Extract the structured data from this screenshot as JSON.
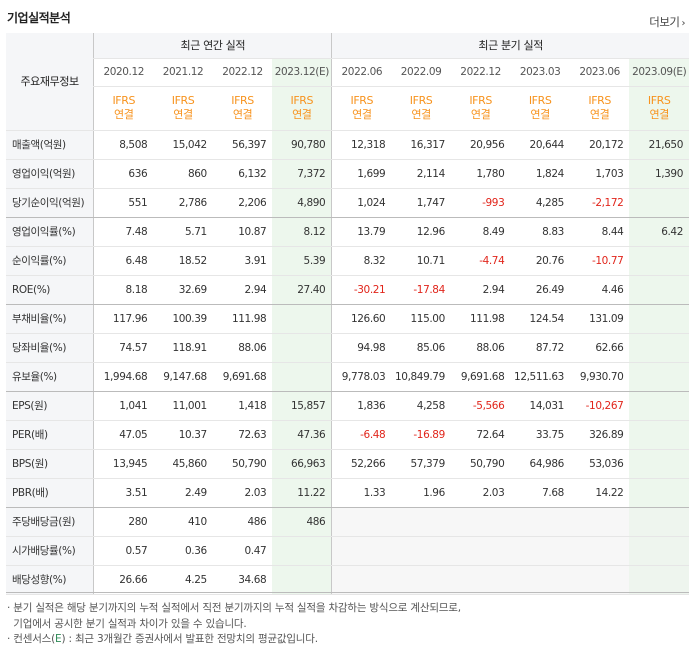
{
  "title": "기업실적분석",
  "more_label": "더보기",
  "header": {
    "row_label": "주요재무정보",
    "annual_group": "최근 연간 실적",
    "quarter_group": "최근 분기 실적",
    "annual_periods": [
      "2020.12",
      "2021.12",
      "2022.12",
      "2023.12(E)"
    ],
    "quarter_periods": [
      "2022.06",
      "2022.09",
      "2022.12",
      "2023.03",
      "2023.06",
      "2023.09(E)"
    ],
    "basis_top": "IFRS",
    "basis_bottom": "연결"
  },
  "rows": [
    {
      "label": "매출액(억원)",
      "values": [
        "8,508",
        "15,042",
        "56,397",
        "90,780",
        "12,318",
        "16,317",
        "20,956",
        "20,644",
        "20,172",
        "21,650"
      ]
    },
    {
      "label": "영업이익(억원)",
      "values": [
        "636",
        "860",
        "6,132",
        "7,372",
        "1,699",
        "2,114",
        "1,780",
        "1,824",
        "1,703",
        "1,390"
      ]
    },
    {
      "label": "당기순이익(억원)",
      "values": [
        "551",
        "2,786",
        "2,206",
        "4,890",
        "1,024",
        "1,747",
        "-993",
        "4,285",
        "-2,172",
        ""
      ]
    },
    {
      "label": "영업이익률(%)",
      "values": [
        "7.48",
        "5.71",
        "10.87",
        "8.12",
        "13.79",
        "12.96",
        "8.49",
        "8.83",
        "8.44",
        "6.42"
      ]
    },
    {
      "label": "순이익률(%)",
      "values": [
        "6.48",
        "18.52",
        "3.91",
        "5.39",
        "8.32",
        "10.71",
        "-4.74",
        "20.76",
        "-10.77",
        ""
      ]
    },
    {
      "label": "ROE(%)",
      "values": [
        "8.18",
        "32.69",
        "2.94",
        "27.40",
        "-30.21",
        "-17.84",
        "2.94",
        "26.49",
        "4.46",
        ""
      ]
    },
    {
      "label": "부채비율(%)",
      "values": [
        "117.96",
        "100.39",
        "111.98",
        "",
        "126.60",
        "115.00",
        "111.98",
        "124.54",
        "131.09",
        ""
      ]
    },
    {
      "label": "당좌비율(%)",
      "values": [
        "74.57",
        "118.91",
        "88.06",
        "",
        "94.98",
        "85.06",
        "88.06",
        "87.72",
        "62.66",
        ""
      ]
    },
    {
      "label": "유보율(%)",
      "values": [
        "1,994.68",
        "9,147.68",
        "9,691.68",
        "",
        "9,778.03",
        "10,849.79",
        "9,691.68",
        "12,511.63",
        "9,930.70",
        ""
      ]
    },
    {
      "label": "EPS(원)",
      "values": [
        "1,041",
        "11,001",
        "1,418",
        "15,857",
        "1,836",
        "4,258",
        "-5,566",
        "14,031",
        "-10,267",
        ""
      ]
    },
    {
      "label": "PER(배)",
      "values": [
        "47.05",
        "10.37",
        "72.63",
        "47.36",
        "-6.48",
        "-16.89",
        "72.64",
        "33.75",
        "326.89",
        ""
      ]
    },
    {
      "label": "BPS(원)",
      "values": [
        "13,945",
        "45,860",
        "50,790",
        "66,963",
        "52,266",
        "57,379",
        "50,790",
        "64,986",
        "53,036",
        ""
      ]
    },
    {
      "label": "PBR(배)",
      "values": [
        "3.51",
        "2.49",
        "2.03",
        "11.22",
        "1.33",
        "1.96",
        "2.03",
        "7.68",
        "14.22",
        ""
      ]
    },
    {
      "label": "주당배당금(원)",
      "values": [
        "280",
        "410",
        "486",
        "486",
        "",
        "",
        "",
        "",
        "",
        ""
      ]
    },
    {
      "label": "시가배당률(%)",
      "values": [
        "0.57",
        "0.36",
        "0.47",
        "",
        "",
        "",
        "",
        "",
        "",
        ""
      ]
    },
    {
      "label": "배당성향(%)",
      "values": [
        "26.66",
        "4.25",
        "34.68",
        "",
        "",
        "",
        "",
        "",
        "",
        ""
      ]
    }
  ],
  "notes": {
    "line1": "· 분기 실적은 해당 분기까지의 누적 실적에서 직전 분기까지의 누적 실적을 차감하는 방식으로 계산되므로,",
    "line2": "  기업에서 공시한 분기 실적과 차이가 있을 수 있습니다.",
    "line3_prefix": "· 컨센서스(",
    "line3_e": "E",
    "line3_suffix": ") : 최근 3개월간 증권사에서 발표한 전망치의 평균값입니다."
  },
  "colors": {
    "negative": "#e1251b",
    "basis": "#f7931e",
    "estimate_bg": "#edf7ed"
  }
}
